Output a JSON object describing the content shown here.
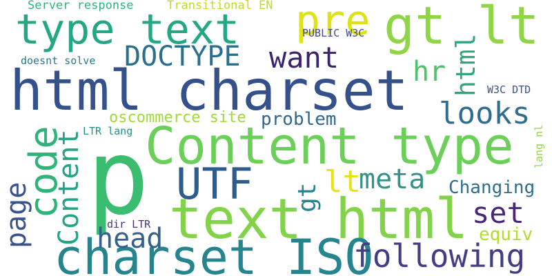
{
  "words": [
    {
      "text": "p",
      "color": "#3bbd6f"
    },
    {
      "text": "Content type",
      "color": "#6ccf59"
    },
    {
      "text": "html charset",
      "color": "#34518b"
    },
    {
      "text": "text html",
      "color": "#83d34a"
    },
    {
      "text": "charset ISO",
      "color": "#26848e"
    },
    {
      "text": "type text",
      "color": "#23a883"
    },
    {
      "text": "gt lt",
      "color": "#8ed645"
    },
    {
      "text": "pre",
      "color": "#dde318"
    },
    {
      "text": "DOCTYPE",
      "color": "#2b6f8e"
    },
    {
      "text": "UTF",
      "color": "#2e5c8c"
    },
    {
      "text": "following",
      "color": "#433d84"
    },
    {
      "text": "code",
      "color": "#2fb37b"
    },
    {
      "text": "want",
      "color": "#3d2270"
    },
    {
      "text": "looks",
      "color": "#2f6e8e"
    },
    {
      "text": "meta",
      "color": "#34928b"
    },
    {
      "text": "head",
      "color": "#33608d"
    },
    {
      "text": "set",
      "color": "#482778"
    },
    {
      "text": "lt",
      "color": "#e6e418"
    },
    {
      "text": "hr",
      "color": "#4fc16b"
    },
    {
      "text": "page",
      "color": "#3b538b"
    },
    {
      "text": "Content",
      "color": "#25a384"
    },
    {
      "text": "html",
      "color": "#2ea67f"
    },
    {
      "text": "gt",
      "color": "#25848e"
    },
    {
      "text": "Changing",
      "color": "#2e6f8e"
    },
    {
      "text": "equiv",
      "color": "#b2dd2d"
    },
    {
      "text": "problem",
      "color": "#31688e"
    },
    {
      "text": "oscommerce site",
      "color": "#a0da39"
    },
    {
      "text": "Server response",
      "color": "#2fb47c"
    },
    {
      "text": "Transitional EN",
      "color": "#bdde26"
    },
    {
      "text": "PUBLIC W3C",
      "color": "#3e4a89"
    },
    {
      "text": "doesnt solve",
      "color": "#2a788e"
    },
    {
      "text": "W3C DTD",
      "color": "#3b528b"
    },
    {
      "text": "LTR lang",
      "color": "#21918c"
    },
    {
      "text": "dir LTR",
      "color": "#46307e"
    },
    {
      "text": "lang nl",
      "color": "#90d743"
    }
  ]
}
